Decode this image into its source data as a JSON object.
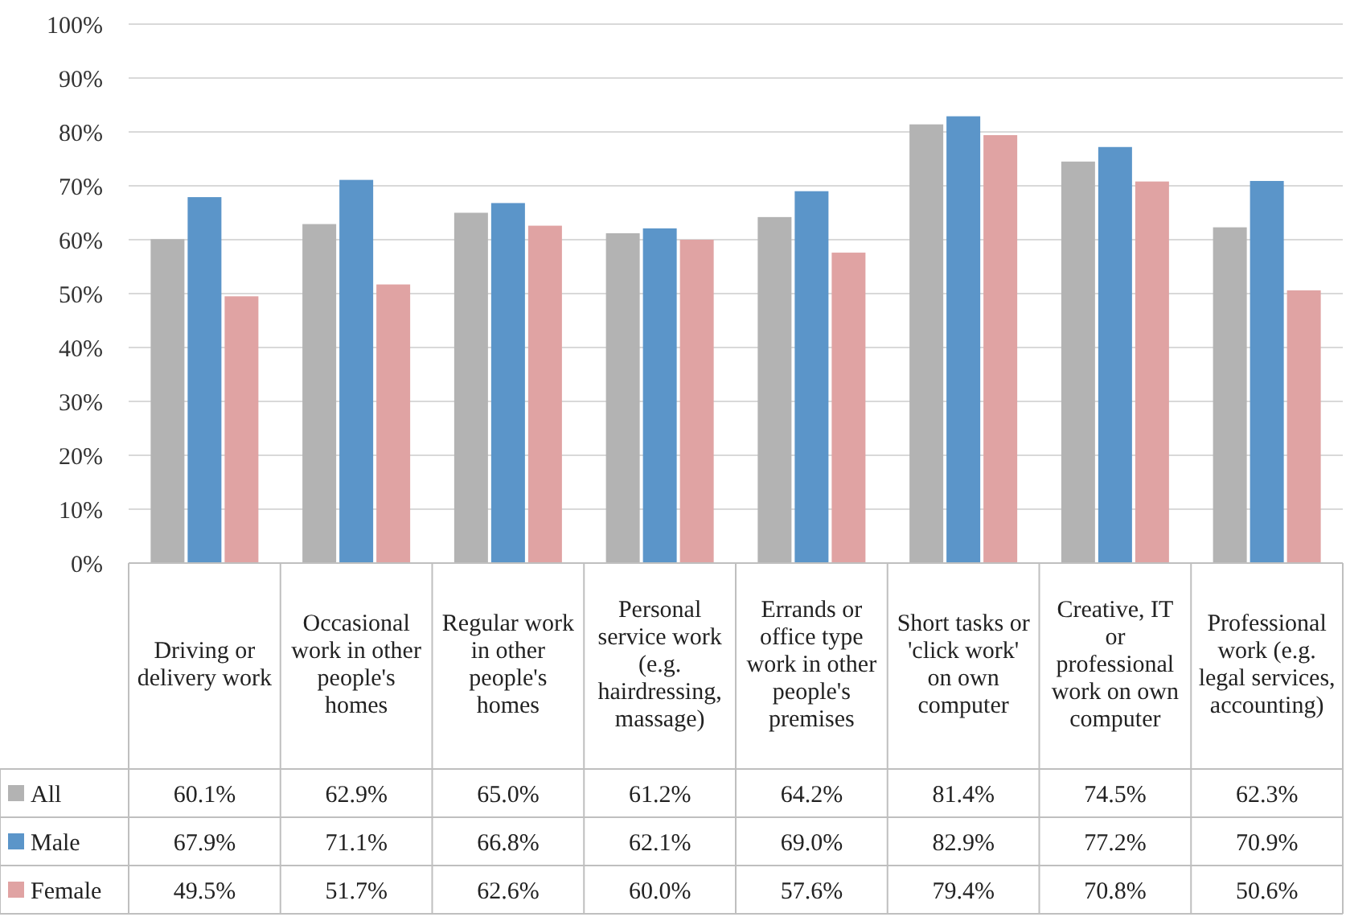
{
  "chart_data": {
    "type": "bar",
    "categories": [
      "Driving or delivery work",
      "Occasional work in other people's homes",
      "Regular work in other people's homes",
      "Personal service work (e.g. hairdressing, massage)",
      "Errands or office type work in other people's premises",
      "Short tasks or 'click work' on own computer",
      "Creative, IT or professional work on own computer",
      "Professional work (e.g. legal services, accounting)"
    ],
    "series": [
      {
        "name": "All",
        "color": "#b3b3b3",
        "values": [
          60.1,
          62.9,
          65.0,
          61.2,
          64.2,
          81.4,
          74.5,
          62.3
        ],
        "value_labels": [
          "60.1%",
          "62.9%",
          "65.0%",
          "61.2%",
          "64.2%",
          "81.4%",
          "74.5%",
          "62.3%"
        ]
      },
      {
        "name": "Male",
        "color": "#5b95c9",
        "values": [
          67.9,
          71.1,
          66.8,
          62.1,
          69.0,
          82.9,
          77.2,
          70.9
        ],
        "value_labels": [
          "67.9%",
          "71.1%",
          "66.8%",
          "62.1%",
          "69.0%",
          "82.9%",
          "77.2%",
          "70.9%"
        ]
      },
      {
        "name": "Female",
        "color": "#e0a3a3",
        "values": [
          49.5,
          51.7,
          62.6,
          60.0,
          57.6,
          79.4,
          70.8,
          50.6
        ],
        "value_labels": [
          "49.5%",
          "51.7%",
          "62.6%",
          "60.0%",
          "57.6%",
          "79.4%",
          "70.8%",
          "50.6%"
        ]
      }
    ],
    "ylim": [
      0,
      100
    ],
    "yticks": [
      {
        "value": 0,
        "label": "0%"
      },
      {
        "value": 10,
        "label": "10%"
      },
      {
        "value": 20,
        "label": "20%"
      },
      {
        "value": 30,
        "label": "30%"
      },
      {
        "value": 40,
        "label": "40%"
      },
      {
        "value": 50,
        "label": "50%"
      },
      {
        "value": 60,
        "label": "60%"
      },
      {
        "value": 70,
        "label": "70%"
      },
      {
        "value": 80,
        "label": "80%"
      },
      {
        "value": 90,
        "label": "90%"
      },
      {
        "value": 100,
        "label": "100%"
      }
    ],
    "grid": "y",
    "legend": "bottom"
  }
}
